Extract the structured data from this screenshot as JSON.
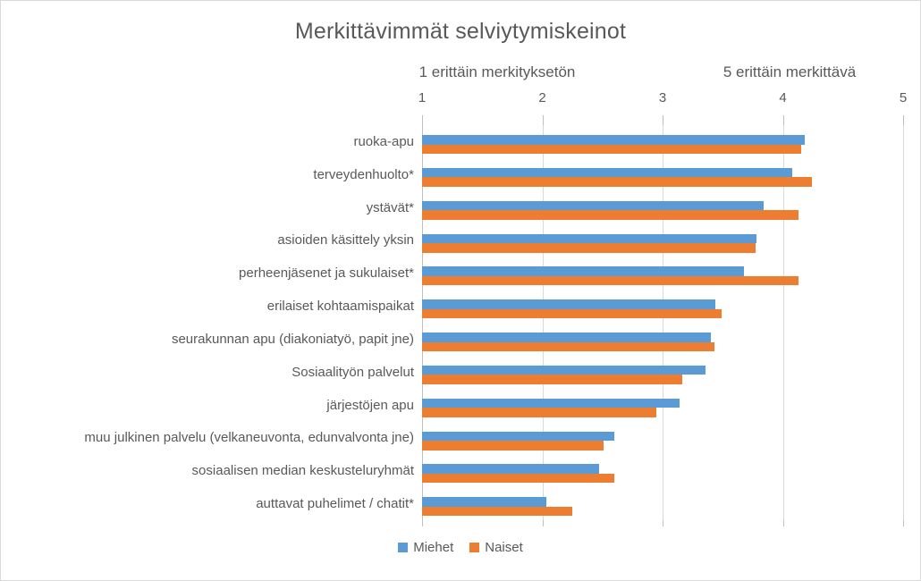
{
  "chart_data": {
    "type": "bar",
    "orientation": "horizontal",
    "title": "Merkittävimmät selviytymiskeinot",
    "scale_note_left": "1 erittäin merkityksetön",
    "scale_note_right": "5 erittäin merkittävä",
    "xlim": [
      1,
      5
    ],
    "axis_ticks": [
      1,
      2,
      3,
      4,
      5
    ],
    "grid": true,
    "legend_position": "bottom",
    "categories": [
      "ruoka-apu",
      "terveydenhuolto*",
      "ystävät*",
      "asioiden käsittely yksin",
      "perheenjäsenet ja sukulaiset*",
      "erilaiset kohtaamispaikat",
      "seurakunnan apu (diakoniatyö, papit jne)",
      "Sosiaalityön palvelut",
      "järjestöjen apu",
      "muu julkinen palvelu (velkaneuvonta, edunvalvonta jne)",
      "sosiaalisen median keskusteluryhmät",
      "auttavat puhelimet / chatit*"
    ],
    "series": [
      {
        "name": "Miehet",
        "color": "#5B9BD5",
        "values": [
          4.18,
          4.08,
          3.84,
          3.78,
          3.68,
          3.44,
          3.4,
          3.36,
          3.14,
          2.6,
          2.47,
          2.03
        ]
      },
      {
        "name": "Naiset",
        "color": "#ED7D31",
        "values": [
          4.15,
          4.24,
          4.13,
          3.77,
          4.13,
          3.49,
          3.43,
          3.16,
          2.95,
          2.51,
          2.6,
          2.25
        ]
      }
    ],
    "colors": {
      "text": "#595959",
      "gridline": "#D9D9D9",
      "axis_line": "#BFBFBF"
    }
  }
}
